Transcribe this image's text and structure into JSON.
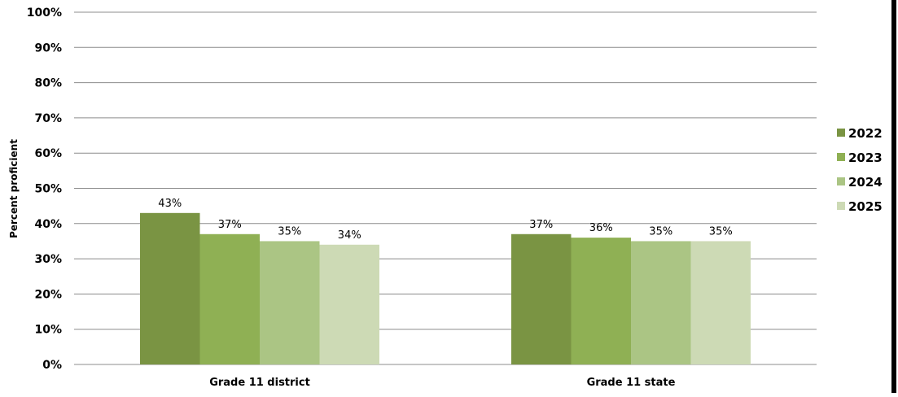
{
  "chart_data": {
    "type": "bar",
    "ylabel": "Percent proficient",
    "xlabel": "",
    "ylim": [
      0,
      100
    ],
    "yticks": [
      "0%",
      "10%",
      "20%",
      "30%",
      "40%",
      "50%",
      "60%",
      "70%",
      "80%",
      "90%",
      "100%"
    ],
    "grid": true,
    "legend_position": "right",
    "categories": [
      "Grade 11 district",
      "Grade 11 state"
    ],
    "series": [
      {
        "name": "2022",
        "color": "#7a9443",
        "values": [
          43,
          37
        ],
        "labels": [
          "43%",
          "37%"
        ]
      },
      {
        "name": "2023",
        "color": "#8fb054",
        "values": [
          37,
          36
        ],
        "labels": [
          "37%",
          "36%"
        ]
      },
      {
        "name": "2024",
        "color": "#abc584",
        "values": [
          35,
          35
        ],
        "labels": [
          "35%",
          "35%"
        ]
      },
      {
        "name": "2025",
        "color": "#cddab5",
        "values": [
          34,
          35
        ],
        "labels": [
          "34%",
          "35%"
        ]
      }
    ]
  }
}
